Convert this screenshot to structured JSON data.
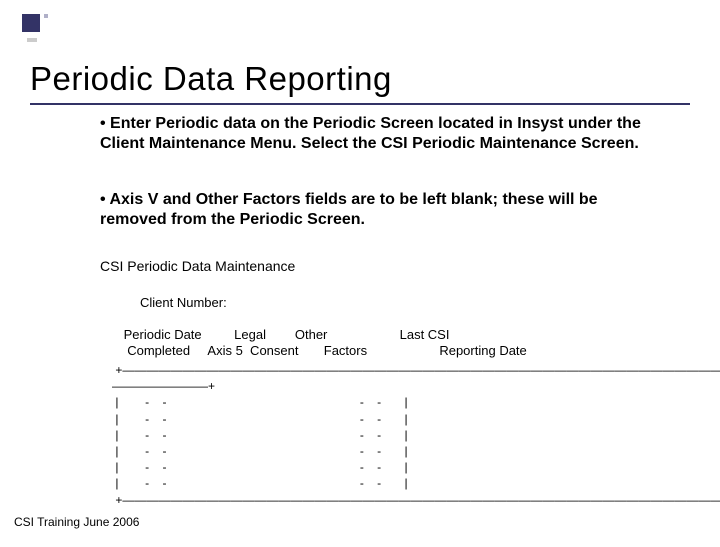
{
  "title": "Periodic Data Reporting",
  "bullets": [
    "• Enter Periodic data on the Periodic Screen located in Insyst under the Client Maintenance Menu.   Select the CSI Periodic Maintenance Screen.",
    "• Axis V and Other Factors fields are to be left blank; these will be removed from the Periodic Screen."
  ],
  "subheading": "CSI Periodic Data Maintenance",
  "client_number_label": "Client Number:",
  "column_headers": " Periodic Date         Legal        Other                    Last CSI\n  Completed     Axis 5  Consent       Factors                    Reporting Date",
  "ascii_block": " +——————————————————————————————————————————————————————————————————————————————————————\n————————+\n |        -    -                                                          -    -       |\n |        -    -                                                          -    -       |\n |        -    -                                                          -    -       |\n |        -    -                                                          -    -       |\n |        -    -                                                          -    -       |\n |        -    -                                                          -    -       |\n +——————————————————————————————————————————————————————————————————————————————————————",
  "footer": "CSI Training June 2006",
  "colors": {
    "accent": "#333366",
    "background": "#ffffff",
    "text": "#000000"
  }
}
